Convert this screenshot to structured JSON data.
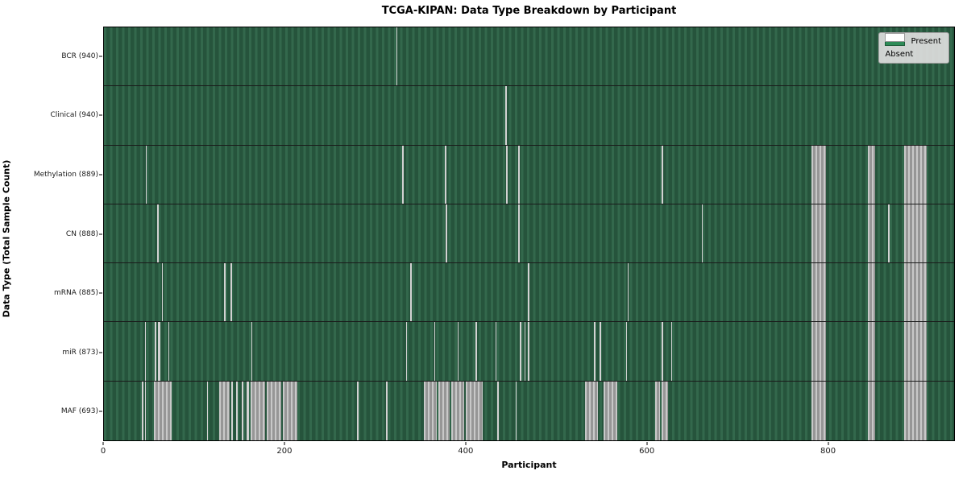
{
  "title": "TCGA-KIPAN: Data Type Breakdown by Participant",
  "xlabel": "Participant",
  "ylabel": "Data Type (Total Sample Count)",
  "legend": {
    "present_label": "Present",
    "absent_label": "Absent"
  },
  "colors": {
    "present": "#2e8b57",
    "present_stripe_light": "#33684c",
    "present_stripe_dark": "#26543c",
    "absent_thin_line": "#d2d2d2",
    "absent_block_light": "#c8c8c8",
    "absent_block_dark": "#969696",
    "row_separator": "#1a1a1a"
  },
  "chart_data": {
    "type": "heatmap",
    "title": "TCGA-KIPAN: Data Type Breakdown by Participant",
    "xlabel": "Participant",
    "ylabel": "Data Type (Total Sample Count)",
    "x_ticks": [
      0,
      200,
      400,
      600,
      800
    ],
    "x_max": 940,
    "legend_position": "upper right",
    "cell_states": [
      "Present",
      "Absent"
    ],
    "rows": [
      {
        "label": "BCR (940)",
        "data_type": "BCR",
        "total_samples": 940,
        "absent_ranges": [
          [
            323,
            324
          ]
        ]
      },
      {
        "label": "Clinical (940)",
        "data_type": "Clinical",
        "total_samples": 940,
        "absent_ranges": [
          [
            444,
            445
          ]
        ]
      },
      {
        "label": "Methylation (889)",
        "data_type": "Methylation",
        "total_samples": 889,
        "absent_ranges": [
          [
            46,
            47
          ],
          [
            330,
            331
          ],
          [
            377,
            378
          ],
          [
            445,
            446
          ],
          [
            458,
            459
          ],
          [
            617,
            618
          ],
          [
            782,
            798
          ],
          [
            845,
            853
          ],
          [
            885,
            910
          ]
        ]
      },
      {
        "label": "CN (888)",
        "data_type": "CN",
        "total_samples": 888,
        "absent_ranges": [
          [
            59,
            60
          ],
          [
            378,
            379
          ],
          [
            458,
            459
          ],
          [
            661,
            662
          ],
          [
            782,
            798
          ],
          [
            845,
            853
          ],
          [
            867,
            868
          ],
          [
            885,
            910
          ]
        ]
      },
      {
        "label": "mRNA (885)",
        "data_type": "mRNA",
        "total_samples": 885,
        "absent_ranges": [
          [
            64,
            65
          ],
          [
            133,
            134
          ],
          [
            140,
            141
          ],
          [
            339,
            340
          ],
          [
            469,
            470
          ],
          [
            579,
            580
          ],
          [
            782,
            798
          ],
          [
            845,
            853
          ],
          [
            885,
            910
          ]
        ]
      },
      {
        "label": "miR (873)",
        "data_type": "miR",
        "total_samples": 873,
        "absent_ranges": [
          [
            45,
            46
          ],
          [
            56,
            58
          ],
          [
            60,
            62
          ],
          [
            71,
            72
          ],
          [
            163,
            164
          ],
          [
            334,
            335
          ],
          [
            365,
            366
          ],
          [
            391,
            392
          ],
          [
            411,
            412
          ],
          [
            433,
            434
          ],
          [
            460,
            461
          ],
          [
            465,
            466
          ],
          [
            469,
            470
          ],
          [
            542,
            543
          ],
          [
            548,
            549
          ],
          [
            577,
            578
          ],
          [
            617,
            618
          ],
          [
            627,
            628
          ],
          [
            782,
            798
          ],
          [
            845,
            853
          ],
          [
            885,
            910
          ]
        ]
      },
      {
        "label": "MAF (693)",
        "data_type": "MAF",
        "total_samples": 693,
        "absent_ranges": [
          [
            42,
            43
          ],
          [
            45,
            46
          ],
          [
            55,
            75
          ],
          [
            114,
            115
          ],
          [
            127,
            139
          ],
          [
            141,
            143
          ],
          [
            146,
            148
          ],
          [
            152,
            154
          ],
          [
            158,
            160
          ],
          [
            162,
            178
          ],
          [
            180,
            196
          ],
          [
            198,
            214
          ],
          [
            280,
            281
          ],
          [
            312,
            313
          ],
          [
            354,
            368
          ],
          [
            370,
            382
          ],
          [
            384,
            398
          ],
          [
            400,
            419
          ],
          [
            435,
            436
          ],
          [
            455,
            456
          ],
          [
            532,
            546
          ],
          [
            552,
            568
          ],
          [
            609,
            615
          ],
          [
            617,
            624
          ],
          [
            782,
            798
          ],
          [
            845,
            853
          ],
          [
            885,
            910
          ]
        ]
      }
    ]
  }
}
